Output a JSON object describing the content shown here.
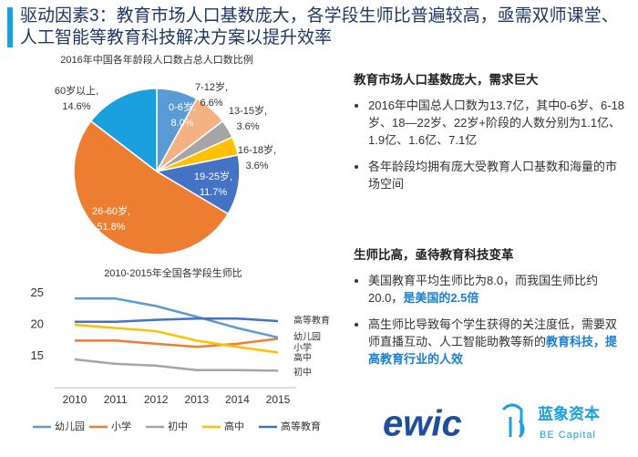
{
  "title": "驱动因素3：教育市场人口基数庞大，各学段生师比普遍较高，亟需双师课堂、人工智能等教育科技解决方案以提升效率",
  "chart_data": [
    {
      "type": "pie",
      "title": "2016年中国各年龄段人口数占总人口数比例",
      "categories": [
        "0-6岁,",
        "7-12岁,",
        "13-15岁,",
        "16-18岁,",
        "19-25岁,",
        "26-60岁,",
        "60岁以上,"
      ],
      "values": [
        8.0,
        6.6,
        3.6,
        3.6,
        11.7,
        51.8,
        14.6
      ],
      "value_labels": [
        "8.0%",
        "6.6%",
        "3.6%",
        "3.6%",
        "11.7%",
        "51.8%",
        "14.6%"
      ],
      "colors": [
        "#5b9bd5",
        "#f4b183",
        "#a5a5a5",
        "#ffc000",
        "#4472c4",
        "#ed7d31",
        "#1a9fdf"
      ]
    },
    {
      "type": "line",
      "title": "2010-2015年全国各学段生师比",
      "categories": [
        "2010",
        "2011",
        "2012",
        "2013",
        "2014",
        "2015"
      ],
      "ylim": [
        10,
        27
      ],
      "yticks": [
        15,
        20,
        25
      ],
      "grid": false,
      "series": [
        {
          "name": "幼儿园",
          "color": "#5b9bd5",
          "values": [
            24.2,
            24.2,
            23.0,
            21.3,
            19.5,
            18.0
          ]
        },
        {
          "name": "小学",
          "color": "#ed7d31",
          "values": [
            17.5,
            17.5,
            17.0,
            16.5,
            17.0,
            17.8
          ]
        },
        {
          "name": "初中",
          "color": "#a5a5a5",
          "values": [
            14.5,
            13.8,
            13.5,
            12.8,
            12.8,
            12.7
          ]
        },
        {
          "name": "高中",
          "color": "#ffc000",
          "values": [
            20.0,
            19.5,
            19.0,
            17.5,
            16.5,
            15.6
          ]
        },
        {
          "name": "高等教育",
          "color": "#4472c4",
          "values": [
            20.5,
            20.5,
            20.8,
            21.0,
            21.0,
            20.6
          ]
        }
      ]
    }
  ],
  "sections": [
    {
      "heading": "教育市场人口基数庞大，需求巨大",
      "bullets": [
        [
          {
            "text": "2016年中国总人口数为13.7亿，其中0-6岁、6-18岁、18—22岁、22岁+阶段的人数分别为1.1亿、1.9亿、1.6亿、7.1亿"
          }
        ],
        [
          {
            "text": "各年龄段均拥有庞大受教育人口基数和海量的市场空间"
          }
        ]
      ]
    },
    {
      "heading": "生师比高，亟待教育科技变革",
      "bullets": [
        [
          {
            "text": "美国教育平均生师比为8.0，而我国生师比约20.0，"
          },
          {
            "text": "是美国的2.5倍",
            "highlight": true
          }
        ],
        [
          {
            "text": "高生师比导致每个学生获得的关注度低，需要双师直播互动、人工智能助教等新的"
          },
          {
            "text": "教育科技，提高教育行业的人效",
            "highlight": true
          }
        ]
      ]
    }
  ],
  "logos": {
    "ewic": "ewic",
    "brand": "蓝象资本",
    "brand_en": "BE Capital"
  }
}
